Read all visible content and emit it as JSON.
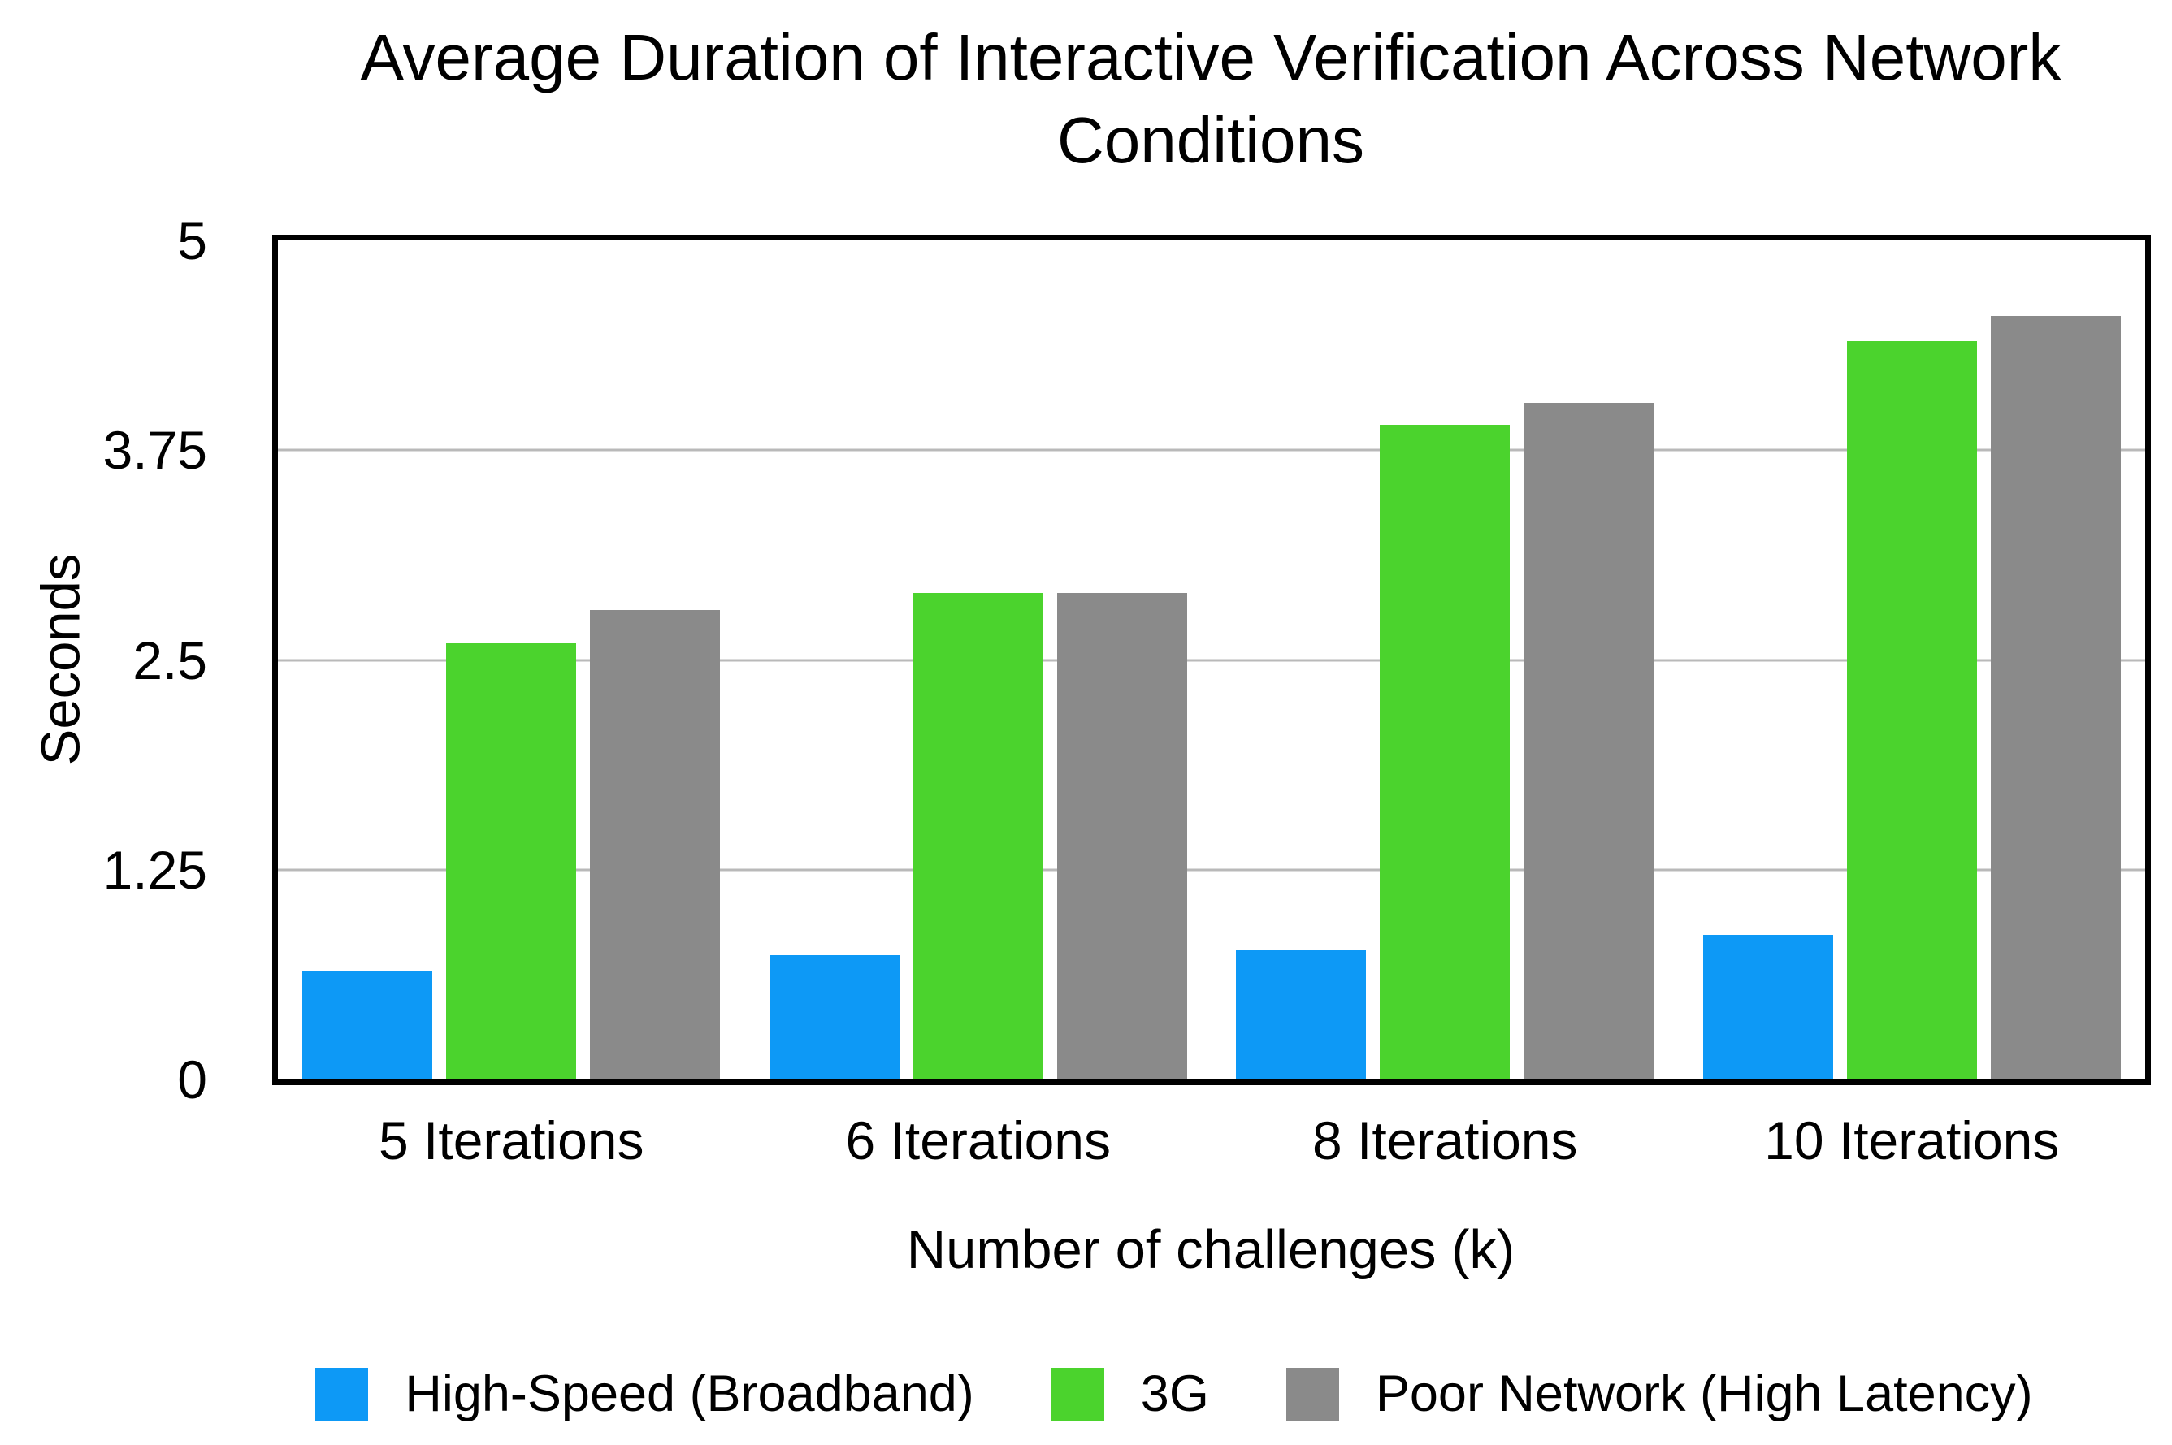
{
  "chart_data": {
    "type": "bar",
    "title": "Average Duration of Interactive Verification Across Network Conditions",
    "xlabel": "Number of challenges (k)",
    "ylabel": "Seconds",
    "categories": [
      "5 Iterations",
      "6 Iterations",
      "8 Iterations",
      "10 Iterations"
    ],
    "series": [
      {
        "name": "High-Speed (Broadband)",
        "color": "#0d99f6",
        "values": [
          0.65,
          0.74,
          0.77,
          0.86
        ]
      },
      {
        "name": "3G",
        "color": "#4bd32d",
        "values": [
          2.6,
          2.9,
          3.9,
          4.4
        ]
      },
      {
        "name": "Poor Network (High Latency)",
        "color": "#8a8a8a",
        "values": [
          2.8,
          2.9,
          4.03,
          4.55
        ]
      }
    ],
    "ylim": [
      0,
      5
    ],
    "yticks": [
      {
        "value": 0,
        "label": "0"
      },
      {
        "value": 1.25,
        "label": "1.25"
      },
      {
        "value": 2.5,
        "label": "2.5"
      },
      {
        "value": 3.75,
        "label": "3.75"
      },
      {
        "value": 5,
        "label": "5"
      }
    ],
    "gridlines": [
      1.25,
      2.5,
      3.75
    ],
    "grid": true,
    "legend_position": "bottom"
  },
  "styles": {
    "background": "#ffffff",
    "text_color": "#000000",
    "frame_color": "#000000",
    "gridline_color": "#b9b9b9"
  }
}
